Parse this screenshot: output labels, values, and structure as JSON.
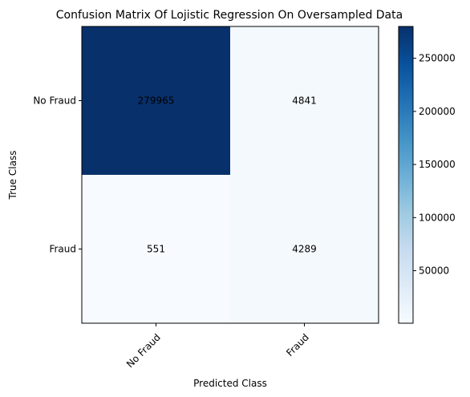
{
  "chart_data": {
    "type": "heatmap",
    "title": "Confusion Matrix Of Lojistic Regression On Oversampled Data",
    "xlabel": "Predicted Class",
    "ylabel": "True Class",
    "x_categories": [
      "No Fraud",
      "Fraud"
    ],
    "y_categories": [
      "No Fraud",
      "Fraud"
    ],
    "values": [
      [
        279965,
        4841
      ],
      [
        551,
        4289
      ]
    ],
    "colormap": "Blues",
    "color_range": [
      551,
      279965
    ],
    "colorbar_ticks": [
      50000,
      100000,
      150000,
      200000,
      250000
    ],
    "colorbar_tick_labels": [
      "50000",
      "100000",
      "150000",
      "200000",
      "250000"
    ],
    "x_tick_rotation_deg": 45,
    "grid": false
  }
}
